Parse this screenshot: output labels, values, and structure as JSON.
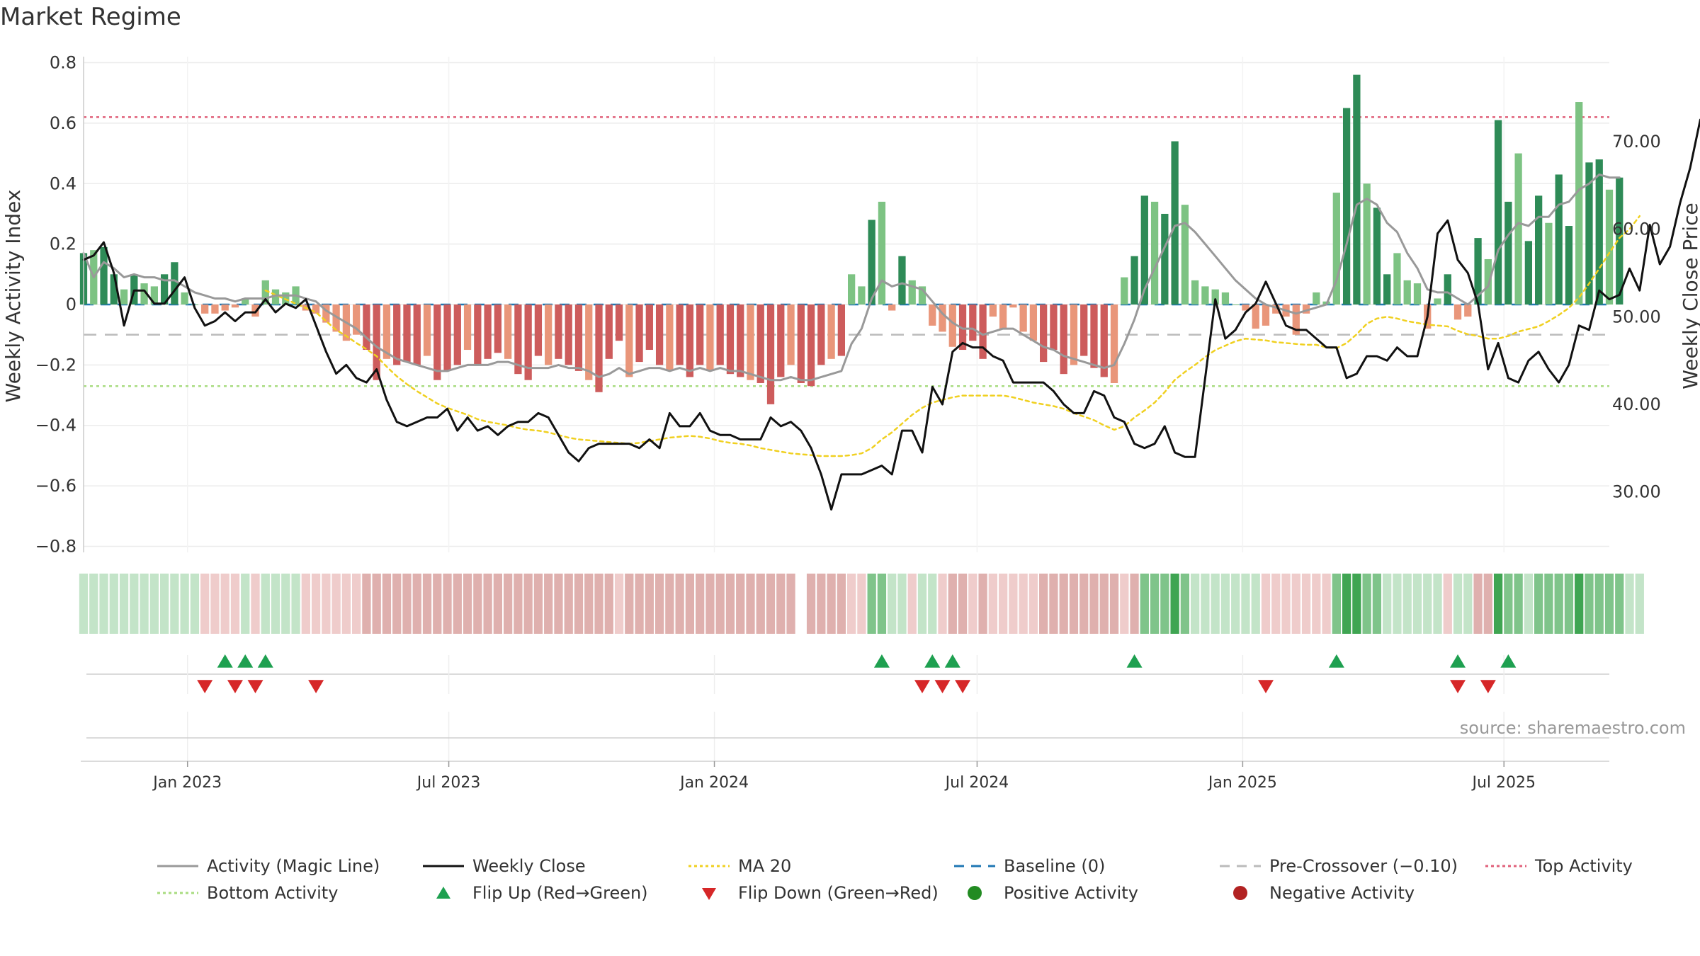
{
  "title": "Market Regime",
  "source": "source: sharemaestro.com",
  "colors": {
    "activity": "#999999",
    "close": "#111111",
    "ma20": "#f0d020",
    "baseline": "#1f77b4",
    "precross": "#bbbbbb",
    "top": "#e0607a",
    "bottom": "#a8dc80",
    "pos_strong": "#2e8b57",
    "pos_weak": "#7dc383",
    "neg_strong": "#cd5c5c",
    "neg_weak": "#e9967a",
    "flip_up": "#1ea050",
    "flip_down": "#d62728",
    "pos_dot": "#228b22",
    "neg_dot": "#b22222"
  },
  "legend": [
    {
      "label": "Activity (Magic Line)",
      "kind": "line",
      "color": "#999999"
    },
    {
      "label": "Weekly Close",
      "kind": "line",
      "color": "#111111"
    },
    {
      "label": "MA 20",
      "kind": "dotted",
      "color": "#f0d020"
    },
    {
      "label": "Baseline (0)",
      "kind": "dashed",
      "color": "#1f77b4"
    },
    {
      "label": "Pre-Crossover (−0.10)",
      "kind": "dashed",
      "color": "#bbbbbb"
    },
    {
      "label": "Top Activity",
      "kind": "dotted",
      "color": "#e0607a"
    },
    {
      "label": "Bottom Activity",
      "kind": "dotted",
      "color": "#a8dc80"
    },
    {
      "label": "Flip Up (Red→Green)",
      "kind": "tri-up",
      "color": "#1ea050"
    },
    {
      "label": "Flip Down (Green→Red)",
      "kind": "tri-down",
      "color": "#d62728"
    },
    {
      "label": "Positive Activity",
      "kind": "dot",
      "color": "#228b22"
    },
    {
      "label": "Negative Activity",
      "kind": "dot",
      "color": "#b22222"
    }
  ],
  "chart_data": {
    "type": "bar",
    "ylabel_left": "Weekly Activity Index",
    "ylabel_right": "Weekly Close Price",
    "ylim_left": [
      -0.82,
      0.82
    ],
    "yticks_left": [
      0.8,
      0.6,
      0.4,
      0.2,
      0,
      -0.2,
      -0.4,
      -0.6,
      -0.8
    ],
    "ytick_labels_left": [
      "0.8",
      "0.6",
      "0.4",
      "0.2",
      "0",
      "−0.2",
      "−0.4",
      "−0.6",
      "−0.8"
    ],
    "ylim_right": [
      23.1,
      79.7
    ],
    "yticks_right": [
      70,
      60,
      50,
      40,
      30
    ],
    "ytick_labels_right": [
      "70.00",
      "60.00",
      "50.00",
      "40.00",
      "30.00"
    ],
    "x_start": "2022-10-21",
    "x_end": "2025-09-12",
    "x_ticks": [
      "2023-01-01",
      "2023-07-01",
      "2024-01-01",
      "2024-07-01",
      "2025-01-01",
      "2025-07-01"
    ],
    "x_tick_labels": [
      "Jan 2023",
      "Jul 2023",
      "Jan 2024",
      "Jul 2024",
      "Jan 2025",
      "Jul 2025"
    ],
    "reference_lines": {
      "top": 0.62,
      "baseline": 0,
      "pre_crossover": -0.1,
      "bottom": -0.27
    },
    "activity": [
      0.17,
      0.18,
      0.19,
      0.1,
      0.05,
      0.1,
      0.07,
      0.06,
      0.1,
      0.14,
      0.04,
      0.0,
      -0.03,
      -0.03,
      -0.02,
      -0.01,
      0.02,
      -0.04,
      0.08,
      0.05,
      0.04,
      0.06,
      -0.02,
      -0.03,
      -0.06,
      -0.09,
      -0.12,
      -0.1,
      -0.15,
      -0.25,
      -0.18,
      -0.2,
      -0.19,
      -0.2,
      -0.17,
      -0.25,
      -0.22,
      -0.2,
      -0.15,
      -0.2,
      -0.18,
      -0.16,
      -0.18,
      -0.23,
      -0.25,
      -0.17,
      -0.2,
      -0.18,
      -0.2,
      -0.22,
      -0.25,
      -0.29,
      -0.18,
      -0.12,
      -0.24,
      -0.19,
      -0.15,
      -0.2,
      -0.22,
      -0.2,
      -0.24,
      -0.2,
      -0.22,
      -0.2,
      -0.23,
      -0.24,
      -0.25,
      -0.26,
      -0.33,
      -0.24,
      -0.2,
      -0.26,
      -0.27,
      -0.2,
      -0.18,
      -0.17,
      0.1,
      0.06,
      0.28,
      0.34,
      -0.02,
      0.16,
      0.08,
      0.06,
      -0.07,
      -0.09,
      -0.14,
      -0.15,
      -0.12,
      -0.18,
      -0.04,
      -0.08,
      -0.01,
      -0.09,
      -0.12,
      -0.19,
      -0.15,
      -0.23,
      -0.2,
      -0.17,
      -0.21,
      -0.24,
      -0.26,
      0.09,
      0.16,
      0.36,
      0.34,
      0.3,
      0.54,
      0.33,
      0.08,
      0.06,
      0.05,
      0.04,
      0.0,
      -0.02,
      -0.08,
      -0.07,
      -0.03,
      -0.04,
      -0.1,
      -0.03,
      0.04,
      0.01,
      0.37,
      0.65,
      0.76,
      0.4,
      0.32,
      0.1,
      0.17,
      0.08,
      0.07,
      -0.08,
      0.02,
      0.1,
      -0.05,
      -0.04,
      0.22,
      0.15,
      0.61,
      0.34,
      0.5,
      0.21,
      0.36,
      0.27,
      0.43,
      0.26,
      0.67,
      0.47,
      0.48,
      0.38,
      0.42
    ],
    "magic_line": [
      0.17,
      0.09,
      0.14,
      0.12,
      0.09,
      0.1,
      0.09,
      0.09,
      0.08,
      0.08,
      0.06,
      0.04,
      0.03,
      0.02,
      0.02,
      0.01,
      0.02,
      0.02,
      0.02,
      0.03,
      0.03,
      0.03,
      0.02,
      0.01,
      -0.02,
      -0.04,
      -0.06,
      -0.08,
      -0.11,
      -0.14,
      -0.16,
      -0.18,
      -0.19,
      -0.2,
      -0.21,
      -0.22,
      -0.22,
      -0.21,
      -0.2,
      -0.2,
      -0.2,
      -0.19,
      -0.19,
      -0.2,
      -0.21,
      -0.21,
      -0.21,
      -0.2,
      -0.21,
      -0.21,
      -0.22,
      -0.24,
      -0.23,
      -0.21,
      -0.23,
      -0.22,
      -0.21,
      -0.21,
      -0.22,
      -0.21,
      -0.22,
      -0.21,
      -0.22,
      -0.21,
      -0.22,
      -0.22,
      -0.23,
      -0.24,
      -0.25,
      -0.25,
      -0.24,
      -0.25,
      -0.25,
      -0.24,
      -0.23,
      -0.22,
      -0.13,
      -0.08,
      0.02,
      0.08,
      0.06,
      0.07,
      0.06,
      0.05,
      0.01,
      -0.03,
      -0.06,
      -0.08,
      -0.08,
      -0.1,
      -0.09,
      -0.08,
      -0.08,
      -0.1,
      -0.12,
      -0.14,
      -0.15,
      -0.17,
      -0.18,
      -0.19,
      -0.2,
      -0.21,
      -0.2,
      -0.13,
      -0.05,
      0.05,
      0.12,
      0.19,
      0.26,
      0.27,
      0.24,
      0.2,
      0.16,
      0.12,
      0.08,
      0.05,
      0.02,
      0.0,
      -0.01,
      -0.02,
      -0.03,
      -0.02,
      -0.01,
      0.0,
      0.08,
      0.2,
      0.33,
      0.35,
      0.33,
      0.27,
      0.24,
      0.17,
      0.12,
      0.05,
      0.04,
      0.04,
      0.02,
      0.0,
      0.03,
      0.06,
      0.18,
      0.23,
      0.27,
      0.26,
      0.29,
      0.29,
      0.33,
      0.34,
      0.38,
      0.4,
      0.43,
      0.42,
      0.42
    ],
    "weekly_close": [
      56.5,
      57,
      58.5,
      55,
      49,
      53,
      53,
      51.5,
      51.5,
      53,
      54.5,
      51,
      49,
      49.5,
      50.5,
      49.5,
      50.5,
      50.5,
      52,
      50.5,
      51.5,
      51,
      52,
      49,
      46,
      43.5,
      44.5,
      43,
      42.5,
      44,
      40.5,
      38,
      37.5,
      38,
      38.5,
      38.5,
      39.5,
      37,
      38.5,
      37,
      37.5,
      36.5,
      37.5,
      38,
      38,
      39,
      38.5,
      36.5,
      34.5,
      33.5,
      35,
      35.5,
      35.5,
      35.5,
      35.5,
      35,
      36,
      35,
      39,
      37.5,
      37.5,
      39,
      37,
      36.5,
      36.5,
      36,
      36,
      36,
      38.5,
      37.5,
      38,
      37,
      35,
      32,
      28,
      32,
      32,
      32,
      32.5,
      33,
      32,
      37,
      37,
      34.5,
      42,
      40,
      46,
      47,
      46.5,
      46.5,
      45.5,
      45,
      42.5,
      42.5,
      42.5,
      42.5,
      41.5,
      40,
      39,
      39,
      41.5,
      41,
      38.5,
      38,
      35.5,
      35,
      35.5,
      37.5,
      34.5,
      34,
      34,
      43,
      52,
      47.5,
      48.5,
      50.5,
      51.5,
      54,
      51.5,
      49,
      48.5,
      48.5,
      47.5,
      46.5,
      46.5,
      43,
      43.5,
      45.5,
      45.5,
      45,
      46.5,
      45.5,
      45.5,
      50,
      59.5,
      61,
      56.5,
      55,
      51.5,
      44,
      47,
      43,
      42.5,
      45,
      46,
      44,
      42.5,
      44.5,
      49,
      48.5,
      53,
      52,
      52.5,
      55.5,
      53,
      60.5,
      56,
      58,
      63,
      67,
      72.5,
      73,
      70,
      68.5
    ],
    "ma20": [
      null,
      null,
      null,
      null,
      null,
      null,
      null,
      null,
      null,
      null,
      null,
      null,
      null,
      null,
      null,
      null,
      null,
      null,
      53,
      52.5,
      52,
      51.5,
      51,
      50.5,
      49.5,
      48.5,
      47.8,
      47,
      46.3,
      45.5,
      44.3,
      43.2,
      42.3,
      41.5,
      40.8,
      40.1,
      39.6,
      39.2,
      38.8,
      38.3,
      38,
      37.8,
      37.6,
      37.3,
      37.1,
      37,
      36.8,
      36.5,
      36.2,
      36,
      35.9,
      35.8,
      35.7,
      35.6,
      35.5,
      35.6,
      35.8,
      36,
      36.2,
      36.3,
      36.4,
      36.3,
      36.1,
      35.8,
      35.6,
      35.5,
      35.3,
      35,
      34.8,
      34.6,
      34.4,
      34.3,
      34.2,
      34.1,
      34.1,
      34.1,
      34.2,
      34.4,
      35,
      36,
      36.8,
      37.8,
      38.8,
      39.6,
      40.2,
      40.5,
      40.8,
      41,
      41,
      41,
      41,
      41,
      40.8,
      40.5,
      40.2,
      40,
      39.8,
      39.5,
      39,
      38.6,
      38.2,
      37.6,
      37.1,
      37.5,
      38.5,
      39.3,
      40.2,
      41.4,
      42.8,
      43.7,
      44.5,
      45.4,
      46.2,
      46.7,
      47.2,
      47.5,
      47.4,
      47.3,
      47.1,
      47,
      46.9,
      46.8,
      46.8,
      46.5,
      46.4,
      47,
      48,
      49.2,
      49.8,
      50,
      49.8,
      49.5,
      49.3,
      49.1,
      49,
      48.9,
      48.4,
      48,
      47.8,
      47.5,
      47.5,
      47.8,
      48.3,
      48.6,
      48.9,
      49.5,
      50.2,
      51,
      52.2,
      53.8,
      55.5,
      57.3,
      59,
      60,
      61.5
    ],
    "strip_status": [
      "pos",
      "pos",
      "pos",
      "pos",
      "pos",
      "pos",
      "pos",
      "pos",
      "pos",
      "pos",
      "pos",
      "pos",
      "neg",
      "neg",
      "neg",
      "neg",
      "pos",
      "neg",
      "pos",
      "pos",
      "pos",
      "pos",
      "neg",
      "neg",
      "neg",
      "neg",
      "neg",
      "neg",
      "neg",
      "neg",
      "neg",
      "neg",
      "neg",
      "neg",
      "neg",
      "neg",
      "neg",
      "neg",
      "neg",
      "neg",
      "neg",
      "neg",
      "neg",
      "neg",
      "neg",
      "neg",
      "neg",
      "neg",
      "neg",
      "neg",
      "neg",
      "neg",
      "neg",
      "neg",
      "neg",
      "neg",
      "neg",
      "neg",
      "neg",
      "neg",
      "neg",
      "neg",
      "neg",
      "neg",
      "neg",
      "neg",
      "neg",
      "neg",
      "neg",
      "neg",
      "neg",
      "gap",
      "neg",
      "neg",
      "neg",
      "neg",
      "neg",
      "neg",
      "pos",
      "pos",
      "pos",
      "pos",
      "neg",
      "pos",
      "pos",
      "neg",
      "neg",
      "neg",
      "neg",
      "neg",
      "neg",
      "neg",
      "neg",
      "neg",
      "neg",
      "neg",
      "neg",
      "neg",
      "neg",
      "neg",
      "neg",
      "neg",
      "neg",
      "neg",
      "neg",
      "pos",
      "pos",
      "pos",
      "pos",
      "pos",
      "pos",
      "pos",
      "pos",
      "pos",
      "pos",
      "pos",
      "pos",
      "neg",
      "neg",
      "neg",
      "neg",
      "neg",
      "neg",
      "neg",
      "pos",
      "pos",
      "pos",
      "pos",
      "pos",
      "pos",
      "pos",
      "pos",
      "pos",
      "pos",
      "pos",
      "neg",
      "pos",
      "pos",
      "neg",
      "neg",
      "pos",
      "pos",
      "pos",
      "pos",
      "pos",
      "pos",
      "pos",
      "pos",
      "pos",
      "pos",
      "pos",
      "pos",
      "pos",
      "pos",
      "pos"
    ],
    "flip_up_weeks": [
      14,
      16,
      18,
      79,
      84,
      86,
      104,
      124,
      136,
      141
    ],
    "flip_down_weeks": [
      12,
      15,
      17,
      23,
      83,
      85,
      87,
      117,
      136,
      139
    ]
  }
}
